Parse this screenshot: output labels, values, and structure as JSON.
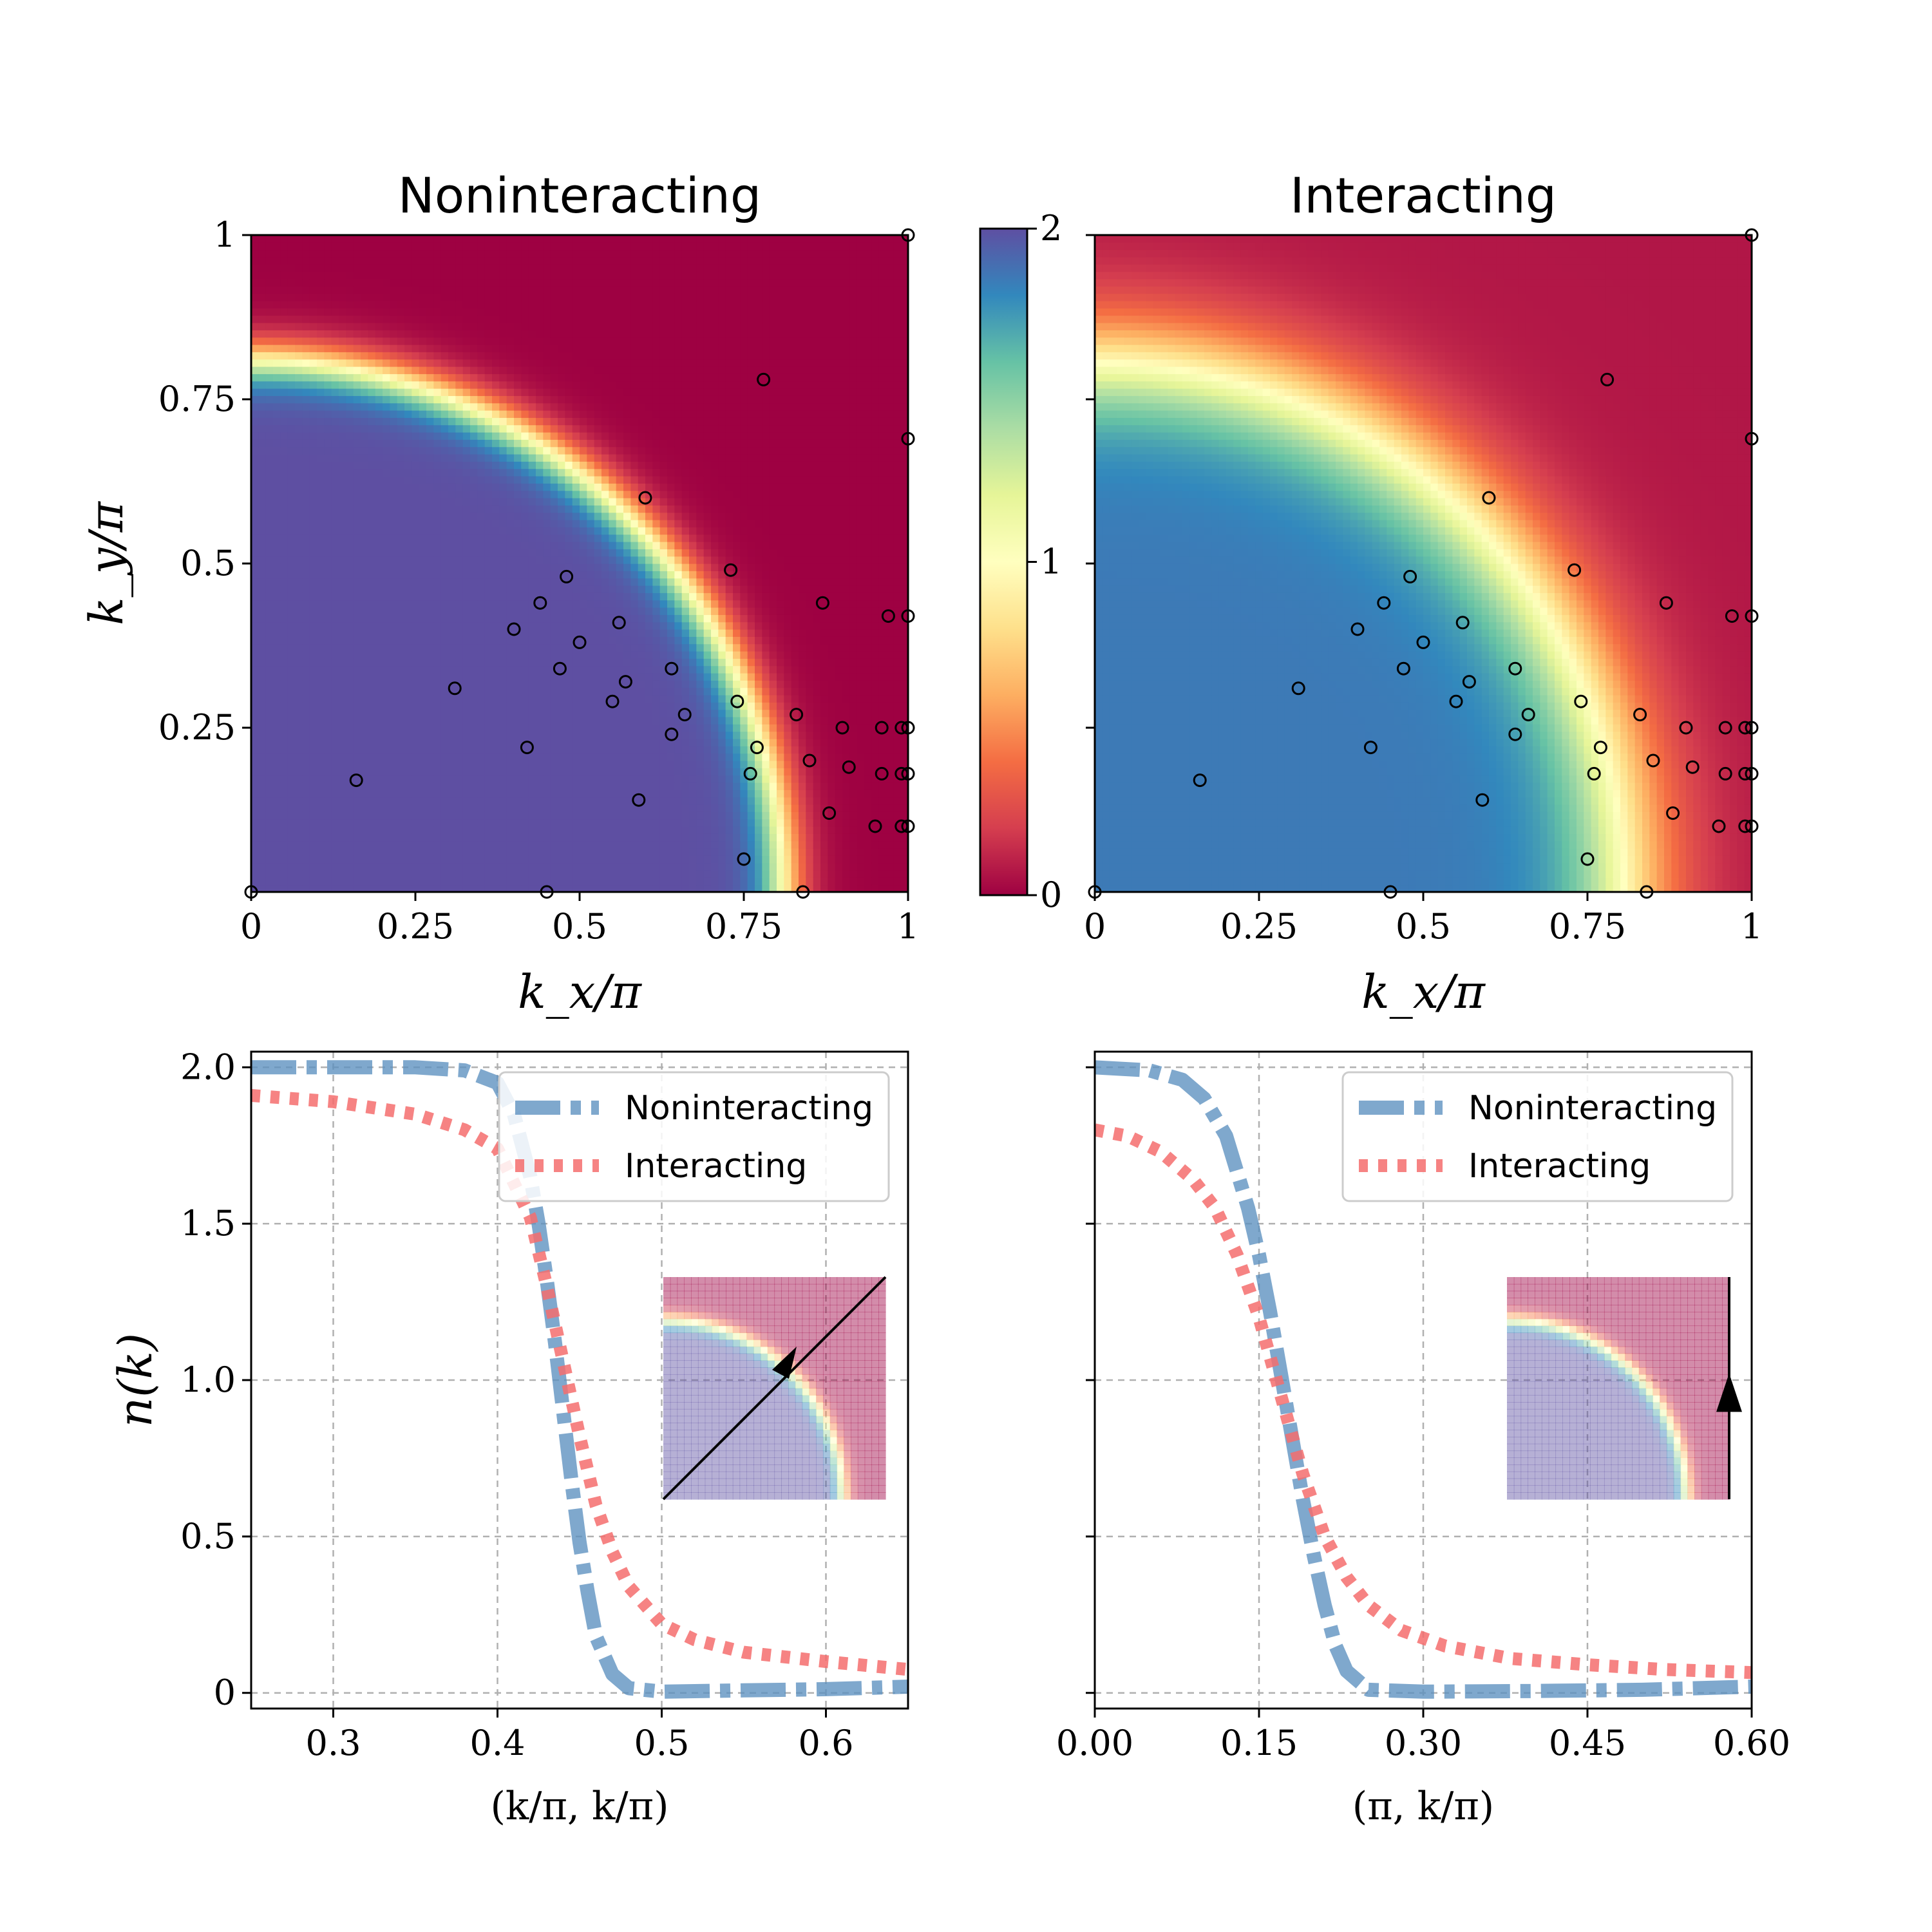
{
  "colors": {
    "noninteracting": "#5b8fbf",
    "interacting": "#f46d6d",
    "grid": "#b0b0b0",
    "cmap": [
      "#9e0142",
      "#d53e4f",
      "#f46d43",
      "#fdae61",
      "#fee08b",
      "#ffffbf",
      "#e6f598",
      "#abdda4",
      "#66c2a5",
      "#3288bd",
      "#5e4fa2"
    ]
  },
  "icons": {
    "inset_arrow": "arrow-icon"
  },
  "colorbar": {
    "ticks": [
      "0",
      "1",
      "2"
    ],
    "min": 0,
    "max": 2
  },
  "chart_data": [
    {
      "type": "heatmap",
      "title": "Noninteracting",
      "xlabel": "k_x/π",
      "ylabel": "k_y/π",
      "xlim": [
        0,
        1
      ],
      "ylim": [
        0,
        1
      ],
      "xticks": [
        "0",
        "0.25",
        "0.5",
        "0.75",
        "1"
      ],
      "yticks": [
        "0.25",
        "0.5",
        "0.75",
        "1"
      ],
      "fermi_radius": 0.81,
      "width": 0.02,
      "low_value": 0.0,
      "high_value": 2.0,
      "points": [
        [
          0,
          0
        ],
        [
          0.16,
          0.17
        ],
        [
          0.31,
          0.31
        ],
        [
          0.4,
          0.4
        ],
        [
          0.42,
          0.22
        ],
        [
          0.44,
          0.44
        ],
        [
          0.45,
          0.0
        ],
        [
          0.47,
          0.34
        ],
        [
          0.48,
          0.48
        ],
        [
          0.5,
          0.38
        ],
        [
          0.55,
          0.29
        ],
        [
          0.56,
          0.41
        ],
        [
          0.57,
          0.32
        ],
        [
          0.59,
          0.14
        ],
        [
          0.6,
          0.6
        ],
        [
          0.64,
          0.24
        ],
        [
          0.64,
          0.34
        ],
        [
          0.66,
          0.27
        ],
        [
          0.73,
          0.49
        ],
        [
          0.74,
          0.29
        ],
        [
          0.75,
          0.05
        ],
        [
          0.76,
          0.18
        ],
        [
          0.77,
          0.22
        ],
        [
          0.78,
          0.78
        ],
        [
          0.83,
          0.27
        ],
        [
          0.84,
          0.0
        ],
        [
          0.85,
          0.2
        ],
        [
          0.87,
          0.44
        ],
        [
          0.88,
          0.12
        ],
        [
          0.9,
          0.25
        ],
        [
          0.91,
          0.19
        ],
        [
          0.95,
          0.1
        ],
        [
          0.96,
          0.25
        ],
        [
          0.96,
          0.18
        ],
        [
          0.97,
          0.42
        ],
        [
          0.99,
          0.25
        ],
        [
          0.99,
          0.1
        ],
        [
          0.99,
          0.18
        ],
        [
          1.0,
          0.25
        ],
        [
          1.0,
          0.18
        ],
        [
          1.0,
          0.1
        ],
        [
          1.0,
          0.42
        ],
        [
          1.0,
          0.69
        ],
        [
          1.0,
          1.0
        ]
      ]
    },
    {
      "type": "heatmap",
      "title": "Interacting",
      "xlabel": "k_x/π",
      "ylabel": "",
      "xlim": [
        0,
        1
      ],
      "ylim": [
        0,
        1
      ],
      "xticks": [
        "0",
        "0.25",
        "0.5",
        "0.75",
        "1"
      ],
      "fermi_radius": 0.81,
      "width": 0.05,
      "low_value": 0.07,
      "high_value": 1.85,
      "points": "same"
    },
    {
      "type": "line",
      "xlabel": "(k/π, k/π)",
      "ylabel": "n(k)",
      "xlim": [
        0.25,
        0.65
      ],
      "ylim": [
        -0.05,
        2.05
      ],
      "xticks": [
        0.3,
        0.4,
        0.5,
        0.6
      ],
      "yticks": [
        0,
        0.5,
        1.0,
        1.5,
        2.0
      ],
      "xtick_labels": [
        "0.3",
        "0.4",
        "0.5",
        "0.6"
      ],
      "ytick_labels": [
        "0",
        "0.5",
        "1.0",
        "1.5",
        "2.0"
      ],
      "legend": [
        "Noninteracting",
        "Interacting"
      ],
      "series": [
        {
          "name": "Noninteracting",
          "x": [
            0.25,
            0.3,
            0.35,
            0.38,
            0.4,
            0.41,
            0.42,
            0.425,
            0.43,
            0.435,
            0.44,
            0.445,
            0.45,
            0.455,
            0.46,
            0.47,
            0.48,
            0.5,
            0.55,
            0.6,
            0.65
          ],
          "y": [
            2.0,
            2.0,
            2.0,
            1.99,
            1.95,
            1.85,
            1.65,
            1.5,
            1.32,
            1.12,
            0.9,
            0.68,
            0.48,
            0.32,
            0.18,
            0.06,
            0.015,
            0.004,
            0.008,
            0.012,
            0.02
          ]
        },
        {
          "name": "Interacting",
          "x": [
            0.25,
            0.3,
            0.35,
            0.38,
            0.4,
            0.42,
            0.43,
            0.44,
            0.45,
            0.46,
            0.47,
            0.48,
            0.5,
            0.52,
            0.55,
            0.6,
            0.65
          ],
          "y": [
            1.91,
            1.89,
            1.85,
            1.8,
            1.74,
            1.52,
            1.3,
            1.06,
            0.82,
            0.6,
            0.45,
            0.34,
            0.22,
            0.17,
            0.13,
            0.1,
            0.075
          ]
        }
      ],
      "inset": {
        "path": "diagonal"
      }
    },
    {
      "type": "line",
      "xlabel": "(π, k/π)",
      "ylabel": "",
      "xlim": [
        0.0,
        0.6
      ],
      "ylim": [
        -0.05,
        2.05
      ],
      "xticks": [
        0.0,
        0.15,
        0.3,
        0.45,
        0.6
      ],
      "yticks": [
        0,
        0.5,
        1.0,
        1.5,
        2.0
      ],
      "xtick_labels": [
        "0.00",
        "0.15",
        "0.30",
        "0.45",
        "0.60"
      ],
      "legend": [
        "Noninteracting",
        "Interacting"
      ],
      "series": [
        {
          "name": "Noninteracting",
          "x": [
            0.0,
            0.05,
            0.08,
            0.1,
            0.12,
            0.14,
            0.15,
            0.16,
            0.17,
            0.18,
            0.19,
            0.2,
            0.21,
            0.22,
            0.23,
            0.25,
            0.3,
            0.4,
            0.5,
            0.6
          ],
          "y": [
            2.0,
            1.99,
            1.96,
            1.9,
            1.78,
            1.55,
            1.4,
            1.22,
            1.02,
            0.82,
            0.62,
            0.44,
            0.28,
            0.15,
            0.07,
            0.01,
            0.004,
            0.006,
            0.01,
            0.02
          ]
        },
        {
          "name": "Interacting",
          "x": [
            0.0,
            0.03,
            0.06,
            0.09,
            0.11,
            0.13,
            0.15,
            0.17,
            0.19,
            0.21,
            0.23,
            0.25,
            0.28,
            0.32,
            0.38,
            0.45,
            0.52,
            0.6
          ],
          "y": [
            1.8,
            1.78,
            1.73,
            1.64,
            1.55,
            1.4,
            1.2,
            0.95,
            0.7,
            0.5,
            0.37,
            0.28,
            0.2,
            0.15,
            0.11,
            0.09,
            0.075,
            0.065
          ]
        }
      ],
      "inset": {
        "path": "vertical"
      }
    }
  ]
}
